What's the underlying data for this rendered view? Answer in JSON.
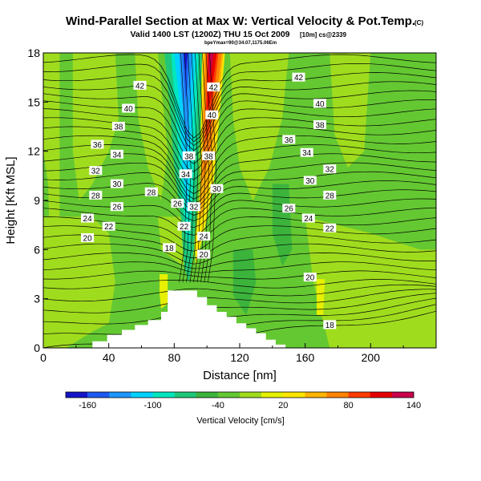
{
  "chart_data": {
    "type": "heatmap",
    "title": "Wind-Parallel Section at Max W: Vertical Velocity & Pot.Temp.",
    "title_mark": "(C)",
    "subtitle": "Valid 1400 LST (1200Z) THU 15 Oct 2009",
    "subtitle_suffix": "[10m] cs@2339",
    "subtitle_line2": "bpeYmax=90@34.07,1175.06Em",
    "xlabel": "Distance [nm]",
    "ylabel": "Height [Kft MSL]",
    "xlim": [
      0,
      240
    ],
    "ylim": [
      0,
      18
    ],
    "x_ticks": [
      0,
      40,
      80,
      120,
      160,
      200
    ],
    "y_ticks": [
      0,
      3,
      6,
      9,
      12,
      15,
      18
    ],
    "colorbar": {
      "label": "Vertical Velocity [cm/s]",
      "tick_labels": [
        "-160",
        "-100",
        "-40",
        "20",
        "80",
        "140"
      ],
      "colors": [
        "#1414c8",
        "#1e5af0",
        "#1e96ff",
        "#00d2ff",
        "#00e6be",
        "#1ec878",
        "#3cb43c",
        "#64c832",
        "#a0dc1e",
        "#e6f000",
        "#ffe600",
        "#ffb400",
        "#ff8200",
        "#ff3c00",
        "#e60000",
        "#c8004b"
      ]
    },
    "contour_labels": [
      {
        "label": "42",
        "x": 59,
        "y": 16.0
      },
      {
        "label": "42",
        "x": 104,
        "y": 15.9
      },
      {
        "label": "42",
        "x": 156,
        "y": 16.5
      },
      {
        "label": "40",
        "x": 52,
        "y": 14.6
      },
      {
        "label": "40",
        "x": 103,
        "y": 14.2
      },
      {
        "label": "40",
        "x": 169,
        "y": 14.9
      },
      {
        "label": "38",
        "x": 46,
        "y": 13.5
      },
      {
        "label": "38",
        "x": 89,
        "y": 11.7
      },
      {
        "label": "38",
        "x": 101,
        "y": 11.7
      },
      {
        "label": "38",
        "x": 169,
        "y": 13.6
      },
      {
        "label": "36",
        "x": 33,
        "y": 12.4
      },
      {
        "label": "36",
        "x": 150,
        "y": 12.7
      },
      {
        "label": "34",
        "x": 45,
        "y": 11.8
      },
      {
        "label": "34",
        "x": 87,
        "y": 10.6
      },
      {
        "label": "34",
        "x": 161,
        "y": 11.9
      },
      {
        "label": "32",
        "x": 32,
        "y": 10.8
      },
      {
        "label": "32",
        "x": 92,
        "y": 8.6
      },
      {
        "label": "32",
        "x": 175,
        "y": 10.9
      },
      {
        "label": "30",
        "x": 45,
        "y": 10.0
      },
      {
        "label": "30",
        "x": 106,
        "y": 9.7
      },
      {
        "label": "30",
        "x": 163,
        "y": 10.2
      },
      {
        "label": "28",
        "x": 32,
        "y": 9.3
      },
      {
        "label": "28",
        "x": 66,
        "y": 9.5
      },
      {
        "label": "28",
        "x": 175,
        "y": 9.3
      },
      {
        "label": "26",
        "x": 45,
        "y": 8.6
      },
      {
        "label": "26",
        "x": 82,
        "y": 8.8
      },
      {
        "label": "26",
        "x": 150,
        "y": 8.5
      },
      {
        "label": "24",
        "x": 27,
        "y": 7.9
      },
      {
        "label": "24",
        "x": 98,
        "y": 6.8
      },
      {
        "label": "24",
        "x": 162,
        "y": 7.9
      },
      {
        "label": "22",
        "x": 40,
        "y": 7.4
      },
      {
        "label": "22",
        "x": 86,
        "y": 7.4
      },
      {
        "label": "22",
        "x": 175,
        "y": 7.3
      },
      {
        "label": "20",
        "x": 27,
        "y": 6.7
      },
      {
        "label": "20",
        "x": 98,
        "y": 5.7
      },
      {
        "label": "20",
        "x": 163,
        "y": 4.3
      },
      {
        "label": "18",
        "x": 77,
        "y": 6.1
      },
      {
        "label": "18",
        "x": 175,
        "y": 1.4
      }
    ]
  }
}
